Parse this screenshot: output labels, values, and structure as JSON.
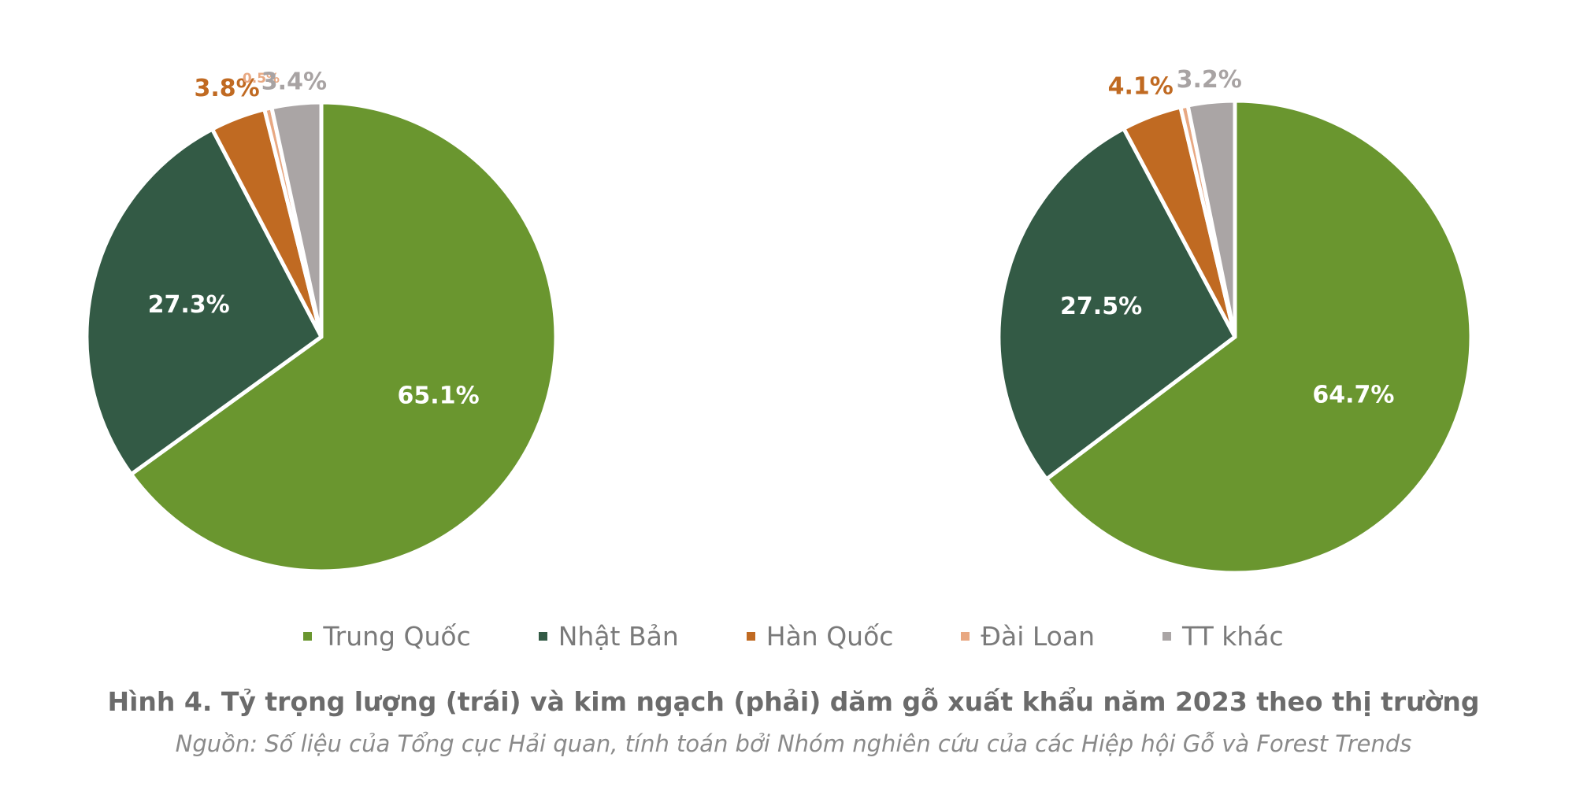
{
  "chart_data": [
    {
      "type": "pie",
      "categories": [
        "Trung Quốc",
        "Nhật Bản",
        "Hàn Quốc",
        "Đài Loan",
        "TT khác"
      ],
      "values": [
        65.1,
        27.3,
        3.8,
        0.5,
        3.4
      ],
      "data_labels": [
        "65.1%",
        "27.3%",
        "3.8%",
        "0.5%",
        "3.4%"
      ],
      "colors": [
        "#6a962f",
        "#335a45",
        "#c06a22",
        "#e8a882",
        "#aaa5a5"
      ]
    },
    {
      "type": "pie",
      "categories": [
        "Trung Quốc",
        "Nhật Bản",
        "Hàn Quốc",
        "Đài Loan",
        "TT khác"
      ],
      "values": [
        64.7,
        27.5,
        4.1,
        0.5,
        3.2
      ],
      "data_labels": [
        "64.7%",
        "27.5%",
        "4.1%",
        "",
        "3.2%"
      ],
      "colors": [
        "#6a962f",
        "#335a45",
        "#c06a22",
        "#e8a882",
        "#aaa5a5"
      ]
    }
  ],
  "legend": {
    "placement": "bottom",
    "items": [
      {
        "label": "Trung Quốc",
        "color": "#6a962f"
      },
      {
        "label": "Nhật Bản",
        "color": "#335a45"
      },
      {
        "label": "Hàn Quốc",
        "color": "#c06a22"
      },
      {
        "label": "Đài Loan",
        "color": "#e8a882"
      },
      {
        "label": "TT khác",
        "color": "#aaa5a5"
      }
    ]
  },
  "caption": "Hình 4. Tỷ trọng lượng (trái) và kim ngạch (phải) dăm gỗ xuất khẩu năm 2023 theo thị trường",
  "source": "Nguồn: Số liệu của Tổng cục Hải quan, tính toán bởi Nhóm nghiên cứu của các Hiệp hội Gỗ và Forest Trends"
}
